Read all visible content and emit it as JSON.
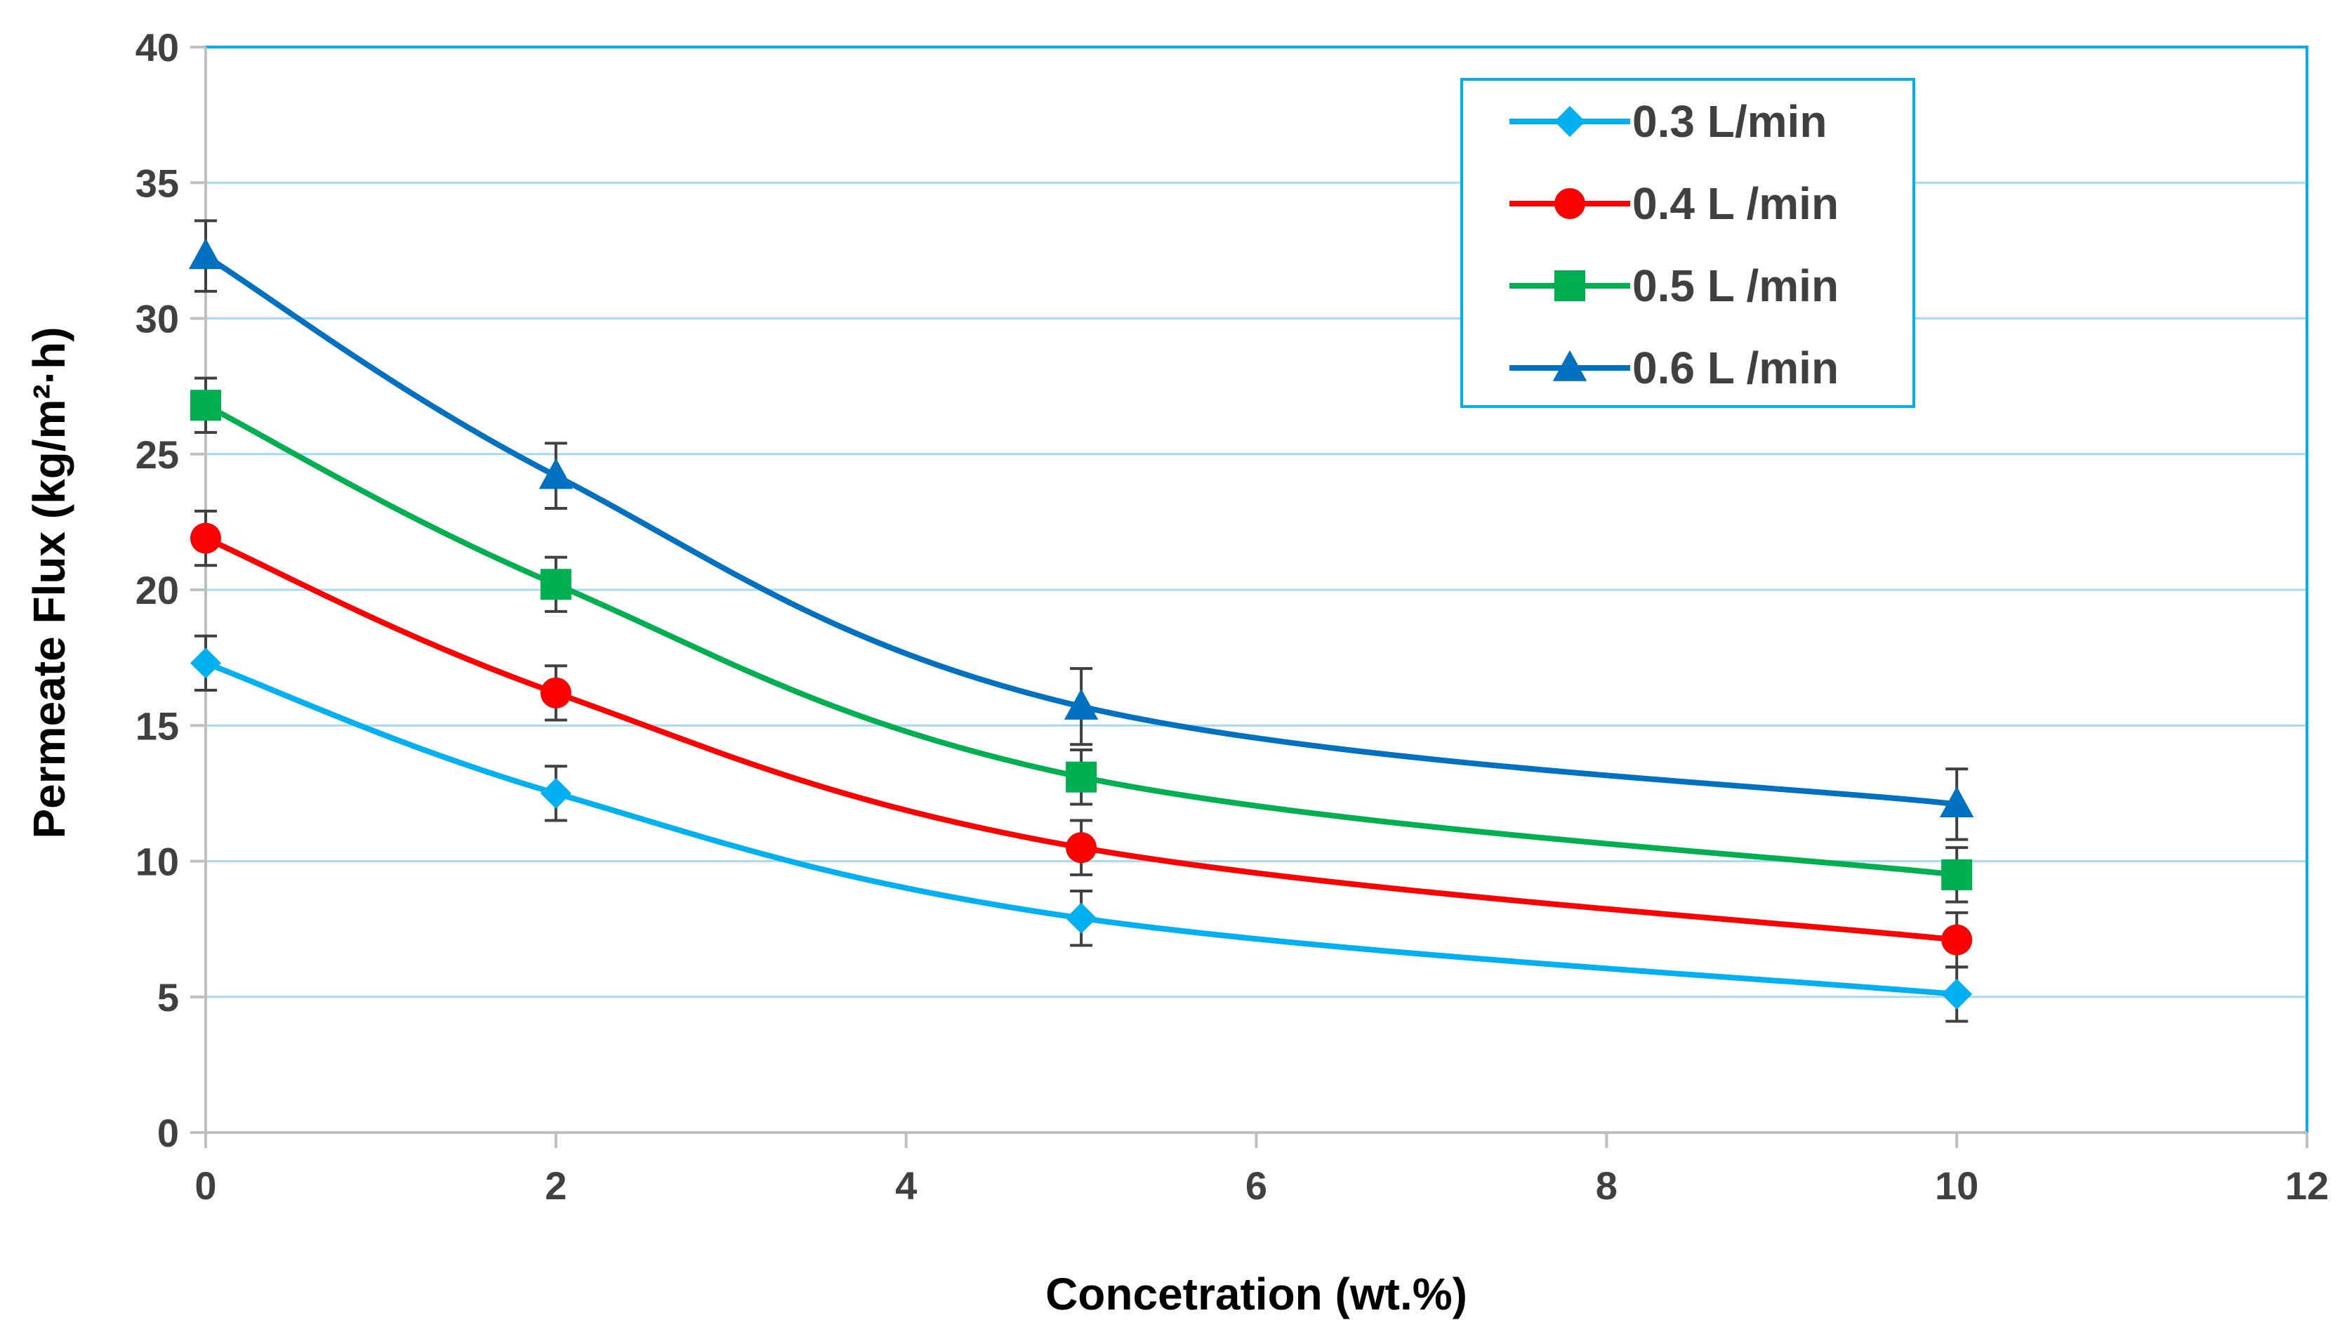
{
  "chart_data": {
    "type": "line",
    "title": "",
    "xlabel": "Concetration (wt.%)",
    "ylabel": "Permeate Flux (kg/m²·h)",
    "xlim": [
      0,
      12
    ],
    "ylim": [
      0,
      40
    ],
    "xticks": [
      0,
      2,
      4,
      6,
      8,
      10,
      12
    ],
    "yticks": [
      0,
      5,
      10,
      15,
      20,
      25,
      30,
      35,
      40
    ],
    "x": [
      0,
      2,
      5,
      10
    ],
    "grid": true,
    "legend_position": "top-right",
    "series": [
      {
        "name": "0.3 L/min",
        "color": "#00B0F0",
        "marker": "diamond",
        "values": [
          17.3,
          12.5,
          7.9,
          5.1
        ],
        "errors": [
          1.0,
          1.0,
          1.0,
          1.0
        ]
      },
      {
        "name": "0.4 L /min",
        "color": "#FF0000",
        "marker": "circle",
        "values": [
          21.9,
          16.2,
          10.5,
          7.1
        ],
        "errors": [
          1.0,
          1.0,
          1.0,
          1.0
        ]
      },
      {
        "name": "0.5 L /min",
        "color": "#00B050",
        "marker": "square",
        "values": [
          26.8,
          20.2,
          13.1,
          9.5
        ],
        "errors": [
          1.0,
          1.0,
          1.0,
          1.0
        ]
      },
      {
        "name": "0.6 L /min",
        "color": "#0070C0",
        "marker": "triangle",
        "values": [
          32.3,
          24.2,
          15.7,
          12.1
        ],
        "errors": [
          1.3,
          1.2,
          1.4,
          1.3
        ]
      }
    ]
  }
}
